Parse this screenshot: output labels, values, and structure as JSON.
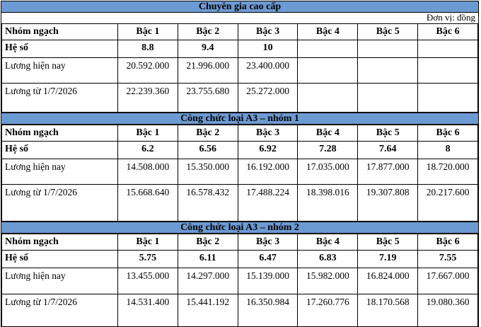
{
  "columns": [
    "Nhóm ngạch",
    "Bậc 1",
    "Bậc 2",
    "Bậc 3",
    "Bậc 4",
    "Bậc 5",
    "Bậc 6"
  ],
  "colors": {
    "band_blue": "#6C9AD2",
    "border": "#000000",
    "text": "#000000",
    "background": "#ffffff"
  },
  "tables": [
    {
      "title": "Chuyên gia cao cấp",
      "unit_note": "Đơn vị: đồng",
      "rows": [
        {
          "label": "Hệ số",
          "values": [
            "8.8",
            "9.4",
            "10",
            "",
            "",
            ""
          ]
        },
        {
          "label": "Lương hiện nay",
          "values": [
            "20.592.000",
            "21.996.000",
            "23.400.000",
            "",
            "",
            ""
          ]
        },
        {
          "label": "Lương từ 1/7/2026",
          "values": [
            "22.239.360",
            "23.755.680",
            "25.272.000",
            "",
            "",
            ""
          ]
        }
      ]
    },
    {
      "title": "Công chức loại A3 – nhóm 1",
      "rows": [
        {
          "label": "Hệ số",
          "values": [
            "6.2",
            "6.56",
            "6.92",
            "7.28",
            "7.64",
            "8"
          ]
        },
        {
          "label": "Lương hiện nay",
          "values": [
            "14.508.000",
            "15.350.000",
            "16.192.000",
            "17.035.000",
            "17.877.000",
            "18.720.000"
          ]
        },
        {
          "label": "Lương từ 1/7/2026",
          "values": [
            "15.668.640",
            "16.578.432",
            "17.488.224",
            "18.398.016",
            "19.307.808",
            "20.217.600"
          ]
        }
      ]
    },
    {
      "title": "Công chức loại A3 – nhóm 2",
      "rows": [
        {
          "label": "Hệ số",
          "values": [
            "5.75",
            "6.11",
            "6.47",
            "6.83",
            "7.19",
            "7.55"
          ]
        },
        {
          "label": "Lương hiện nay",
          "values": [
            "13.455.000",
            "14.297.000",
            "15.139.000",
            "15.982.000",
            "16.824.000",
            "17.667.000"
          ]
        },
        {
          "label": "Lương từ 1/7/2026",
          "values": [
            "14.531.400",
            "15.441.192",
            "16.350.984",
            "17.260.776",
            "18.170.568",
            "19.080.360"
          ]
        }
      ]
    }
  ]
}
